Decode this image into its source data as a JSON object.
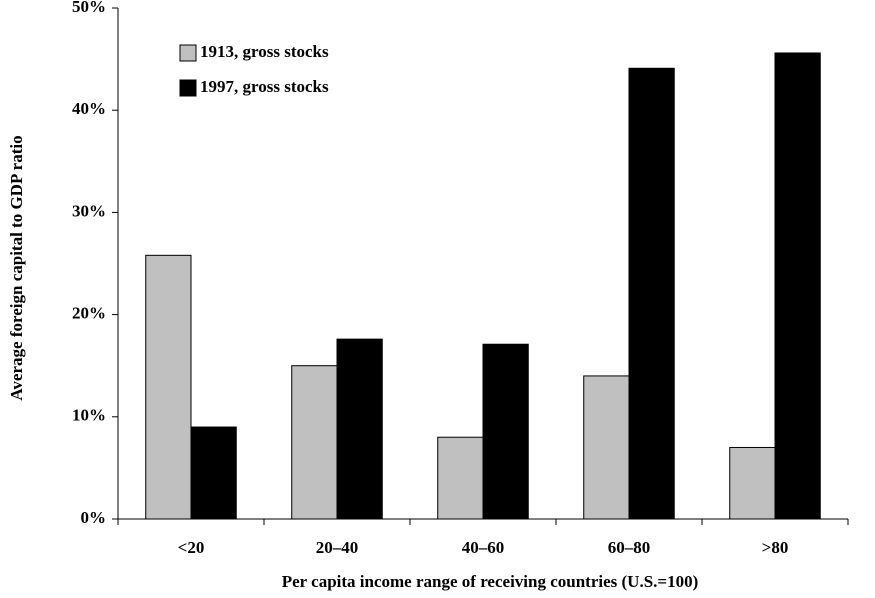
{
  "chart_data": {
    "type": "bar",
    "x_label": "Per capita income range of receiving countries (U.S.=100)",
    "y_label": "Average foreign capital to GDP ratio",
    "categories": [
      "<20",
      "20–40",
      "40–60",
      "60–80",
      ">80"
    ],
    "series": [
      {
        "name": "1913, gross stocks",
        "color": "#c0c0c0",
        "values": [
          25.8,
          15,
          8,
          14,
          7
        ]
      },
      {
        "name": "1997, gross stocks",
        "color": "#000000",
        "values": [
          9,
          17.6,
          17.1,
          44.1,
          45.6
        ]
      }
    ],
    "ylim": [
      0,
      50
    ],
    "yticks": [
      {
        "value": 0,
        "label": "0%"
      },
      {
        "value": 10,
        "label": "10%"
      },
      {
        "value": 20,
        "label": "20%"
      },
      {
        "value": 30,
        "label": "30%"
      },
      {
        "value": 40,
        "label": "40%"
      },
      {
        "value": 50,
        "label": "50%"
      }
    ],
    "grid": false,
    "legend": "upper-left"
  }
}
